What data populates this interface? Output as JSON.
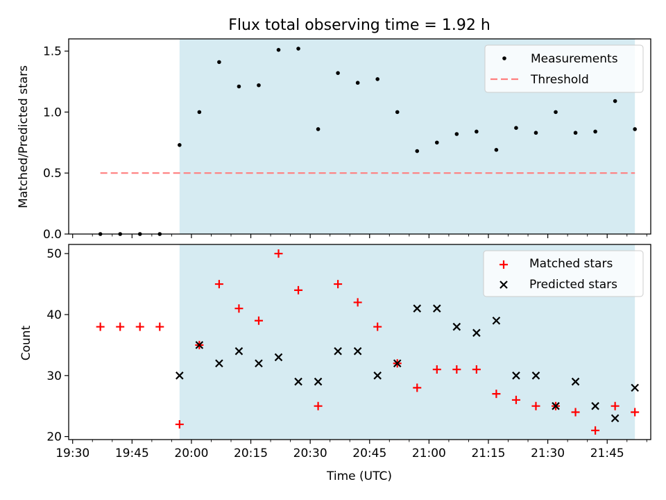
{
  "title": "Flux total observing time = 1.92 h",
  "colors": {
    "shade": "#add8e6",
    "measurement": "#000000",
    "threshold": "#ff7f7f",
    "matched": "#ff0000",
    "predicted": "#000000"
  },
  "chart_data": [
    {
      "type": "scatter",
      "panel": "top",
      "title": "Flux total observing time = 1.92 h",
      "xlabel": "",
      "ylabel": "Matched/Predicted stars",
      "ylim": [
        0,
        1.6
      ],
      "yticks": [
        "0.0",
        "0.5",
        "1.0",
        "1.5"
      ],
      "xlim": [
        "19:29",
        "21:56"
      ],
      "grid": false,
      "legend_position": "upper-right",
      "shaded_interval": [
        "19:57",
        "21:52"
      ],
      "series": [
        {
          "name": "Measurements",
          "marker": "dot",
          "x": [
            "19:37",
            "19:42",
            "19:47",
            "19:52",
            "19:57",
            "20:02",
            "20:07",
            "20:12",
            "20:17",
            "20:22",
            "20:27",
            "20:32",
            "20:37",
            "20:42",
            "20:47",
            "20:52",
            "20:57",
            "21:02",
            "21:07",
            "21:12",
            "21:17",
            "21:22",
            "21:27",
            "21:32",
            "21:37",
            "21:42",
            "21:47",
            "21:52"
          ],
          "y": [
            0.0,
            0.0,
            0.0,
            0.0,
            0.73,
            1.0,
            1.41,
            1.21,
            1.22,
            1.51,
            1.52,
            0.86,
            1.32,
            1.24,
            1.27,
            1.0,
            0.68,
            0.75,
            0.82,
            0.84,
            0.69,
            0.87,
            0.83,
            1.0,
            0.83,
            0.84,
            1.09,
            0.86
          ]
        },
        {
          "name": "Threshold",
          "style": "dashed",
          "x": [
            "19:37",
            "21:52"
          ],
          "y": [
            0.5,
            0.5
          ]
        }
      ]
    },
    {
      "type": "scatter",
      "panel": "bottom",
      "xlabel": "Time (UTC)",
      "ylabel": "Count",
      "ylim": [
        19.5,
        51.5
      ],
      "yticks": [
        "20",
        "30",
        "40",
        "50"
      ],
      "xlim": [
        "19:29",
        "21:56"
      ],
      "xticks": [
        "19:30",
        "19:45",
        "20:00",
        "20:15",
        "20:30",
        "20:45",
        "21:00",
        "21:15",
        "21:30",
        "21:45"
      ],
      "grid": false,
      "legend_position": "upper-right",
      "shaded_interval": [
        "19:57",
        "21:52"
      ],
      "series": [
        {
          "name": "Matched stars",
          "marker": "plus",
          "x": [
            "19:37",
            "19:42",
            "19:47",
            "19:52",
            "19:57",
            "20:02",
            "20:07",
            "20:12",
            "20:17",
            "20:22",
            "20:27",
            "20:32",
            "20:37",
            "20:42",
            "20:47",
            "20:52",
            "20:57",
            "21:02",
            "21:07",
            "21:12",
            "21:17",
            "21:22",
            "21:27",
            "21:32",
            "21:37",
            "21:42",
            "21:47",
            "21:52"
          ],
          "y": [
            38,
            38,
            38,
            38,
            22,
            35,
            45,
            41,
            39,
            50,
            44,
            25,
            45,
            42,
            38,
            32,
            28,
            31,
            31,
            31,
            27,
            26,
            25,
            25,
            24,
            21,
            25,
            24
          ]
        },
        {
          "name": "Predicted stars",
          "marker": "x",
          "x": [
            "19:57",
            "20:02",
            "20:07",
            "20:12",
            "20:17",
            "20:22",
            "20:27",
            "20:32",
            "20:37",
            "20:42",
            "20:47",
            "20:52",
            "20:57",
            "21:02",
            "21:07",
            "21:12",
            "21:17",
            "21:22",
            "21:27",
            "21:32",
            "21:37",
            "21:42",
            "21:47",
            "21:52"
          ],
          "y": [
            30,
            35,
            32,
            34,
            32,
            33,
            29,
            29,
            34,
            34,
            30,
            32,
            41,
            41,
            38,
            37,
            39,
            30,
            30,
            25,
            29,
            25,
            23,
            28
          ]
        }
      ]
    }
  ]
}
